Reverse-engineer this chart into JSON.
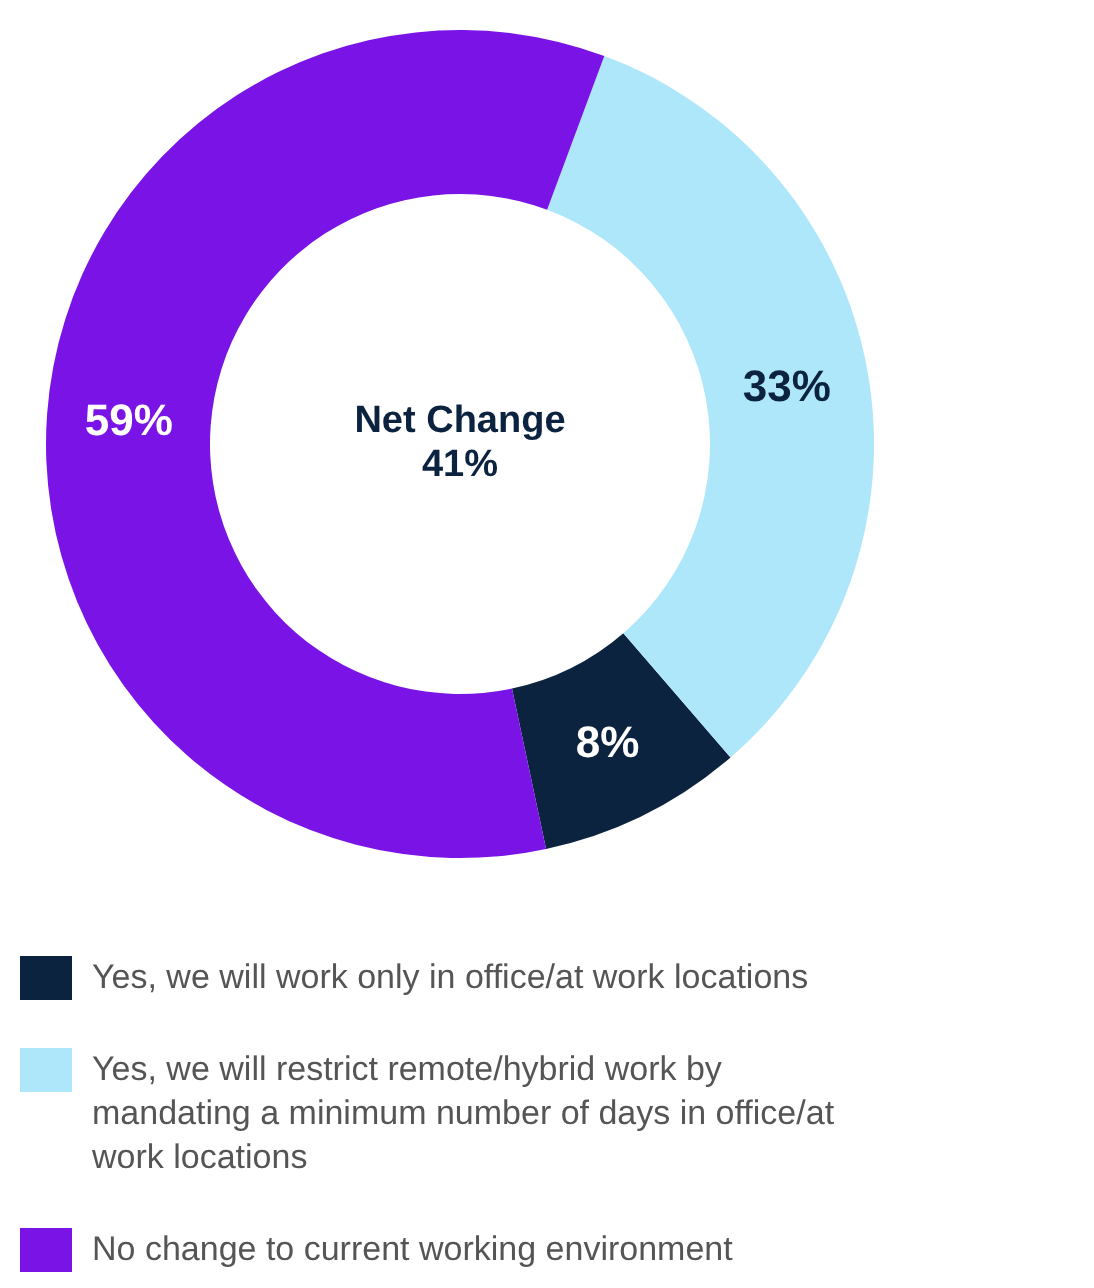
{
  "chart_data": {
    "type": "donut",
    "categories": [
      "Yes, we will work only in office/at work locations",
      "Yes, we will restrict remote/hybrid work by mandating a minimum number of days in office/at work locations",
      "No change to current working environment"
    ],
    "values": [
      8,
      33,
      59
    ],
    "colors": [
      "#0c2340",
      "#aee6fa",
      "#7a14e6"
    ],
    "value_labels": [
      "8%",
      "33%",
      "59%"
    ],
    "annotations": [
      "Net Change",
      "41%"
    ],
    "legend": "bottom"
  }
}
